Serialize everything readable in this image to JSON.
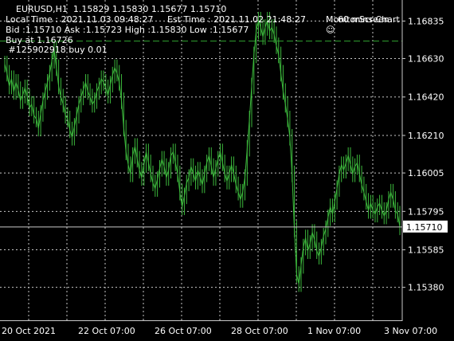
{
  "header": {
    "symbol_line": "EURUSD,H1  1.15829 1.15830 1.15677 1.15710",
    "time_line": "Local Time : 2021.11.03 09:48:27     Est Time : 2021.11.02 21:48:27",
    "bid_line": "Bid :1.15710 Ask :1.15723 High :1.15830 Low :1.15677",
    "buy_line": "Buy at 1.16726",
    "order_line": " #125902918 buy 0.01",
    "screen_label": "MonitorScreen",
    "screen_icon": "smiley-icon",
    "timeframe_label": "60 mins Chart"
  },
  "colors": {
    "background": "#000000",
    "candle": "#3cb83c",
    "grid": "#c8c8c8",
    "buy_line": "#2e9c2e",
    "current_price_line": "#c8c8c8",
    "price_tag_bg": "#ffffff"
  },
  "chart_data": {
    "type": "line",
    "ylim": [
      1.152,
      1.1695
    ],
    "y_ticks": [
      "1.16835",
      "1.16630",
      "1.16420",
      "1.16210",
      "1.16005",
      "1.15795",
      "1.15585",
      "1.15380"
    ],
    "x_ticks": [
      "20 Oct 2021",
      "22 Oct 07:00",
      "26 Oct 07:00",
      "28 Oct 07:00",
      "1 Nov 07:00",
      "3 Nov 07:00"
    ],
    "current_price": "1.15710",
    "buy_price": 1.16726,
    "series": [
      {
        "values": [
          1.166,
          1.1655,
          1.1648,
          1.1652,
          1.1645,
          1.165,
          1.1646,
          1.164,
          1.1643,
          1.1647,
          1.1642,
          1.1636,
          1.1638,
          1.1632,
          1.163,
          1.1625,
          1.1633,
          1.164,
          1.1645,
          1.165,
          1.1655,
          1.1662,
          1.1668,
          1.1658,
          1.1648,
          1.1642,
          1.1638,
          1.1632,
          1.163,
          1.1624,
          1.162,
          1.1626,
          1.1632,
          1.1638,
          1.1642,
          1.1646,
          1.165,
          1.1645,
          1.1642,
          1.1638,
          1.164,
          1.1645,
          1.1648,
          1.1652,
          1.165,
          1.1647,
          1.1643,
          1.1649,
          1.1654,
          1.1658,
          1.1655,
          1.165,
          1.164,
          1.1625,
          1.1612,
          1.1605,
          1.16,
          1.161,
          1.1615,
          1.1608,
          1.1602,
          1.1598,
          1.1605,
          1.1612,
          1.1606,
          1.16,
          1.1595,
          1.1592,
          1.1597,
          1.1603,
          1.1608,
          1.1604,
          1.1598,
          1.1602,
          1.161,
          1.1612,
          1.1606,
          1.16,
          1.159,
          1.1582,
          1.1588,
          1.1595,
          1.1598,
          1.1604,
          1.16,
          1.1596,
          1.1602,
          1.1598,
          1.1594,
          1.16,
          1.1606,
          1.161,
          1.1604,
          1.1598,
          1.1603,
          1.1608,
          1.1612,
          1.1606,
          1.16,
          1.1596,
          1.16,
          1.1605,
          1.16,
          1.1594,
          1.159,
          1.1586,
          1.159,
          1.1598,
          1.1614,
          1.163,
          1.1648,
          1.1665,
          1.1678,
          1.1684,
          1.168,
          1.1675,
          1.168,
          1.1684,
          1.1678,
          1.168,
          1.1676,
          1.167,
          1.1665,
          1.1655,
          1.1645,
          1.1638,
          1.163,
          1.162,
          1.16,
          1.157,
          1.1545,
          1.154,
          1.155,
          1.156,
          1.1565,
          1.1558,
          1.1562,
          1.1568,
          1.1564,
          1.1558,
          1.1555,
          1.156,
          1.1566,
          1.157,
          1.1576,
          1.1582,
          1.1578,
          1.1585,
          1.1592,
          1.16,
          1.1605,
          1.1602,
          1.1606,
          1.161,
          1.1605,
          1.16,
          1.1604,
          1.1606,
          1.16,
          1.1594,
          1.159,
          1.1585,
          1.158,
          1.1584,
          1.158,
          1.1578,
          1.1582,
          1.1584,
          1.158,
          1.1577,
          1.158,
          1.1586,
          1.159,
          1.1586,
          1.158,
          1.1578,
          1.1571
        ]
      }
    ]
  }
}
